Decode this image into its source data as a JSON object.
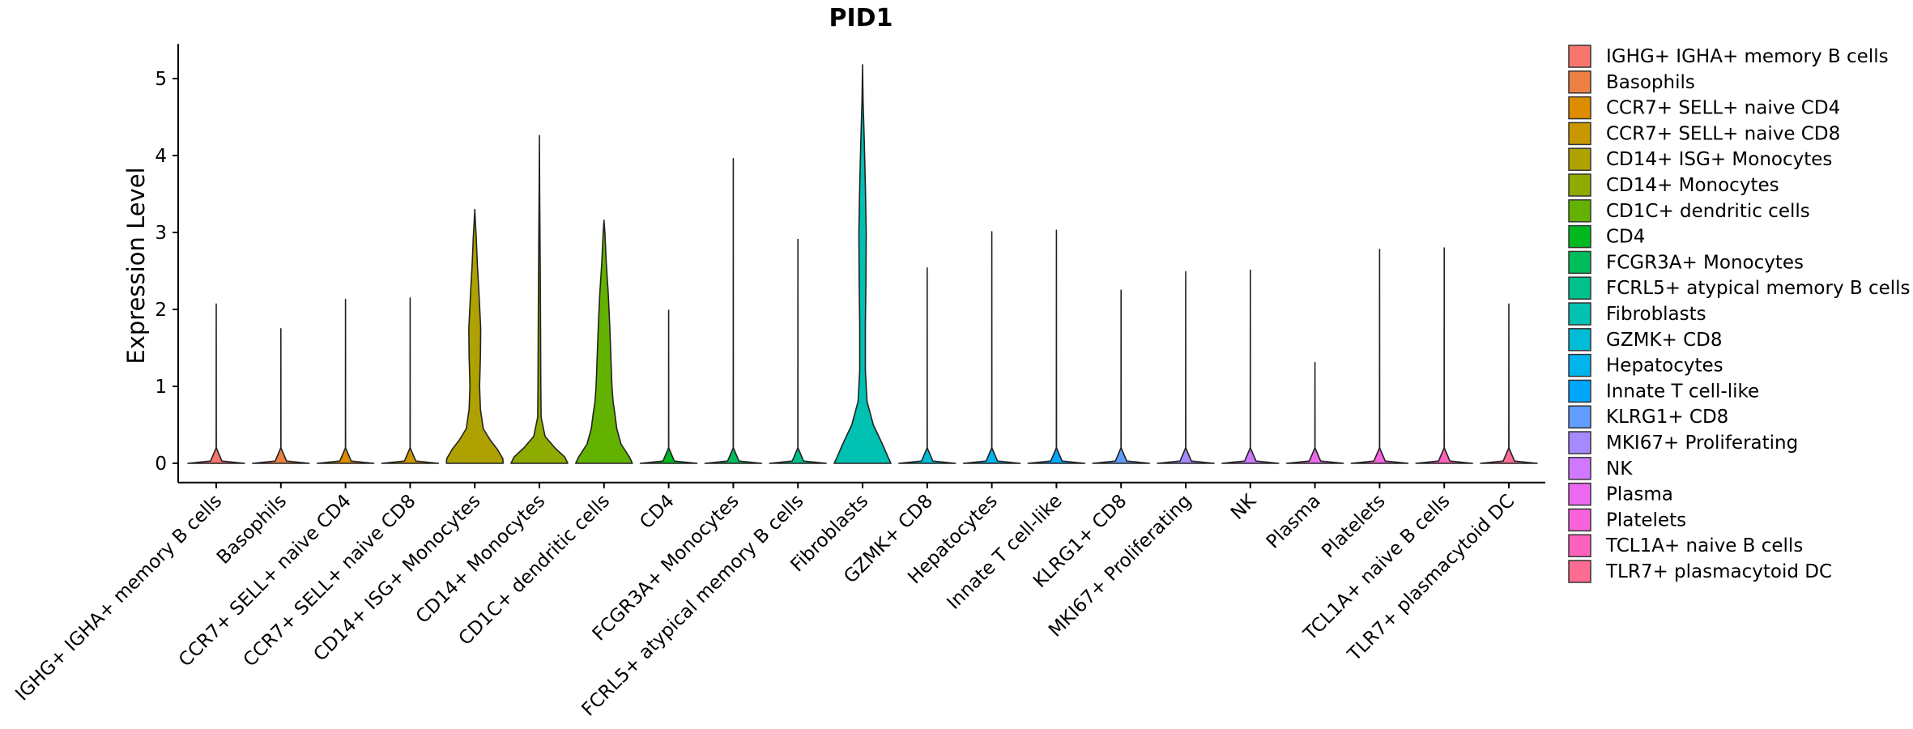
{
  "chart_data": {
    "type": "violin",
    "title": "PID1",
    "xlabel": "",
    "ylabel": "Expression Level",
    "ylim": [
      -0.25,
      5.45
    ],
    "yticks": [
      0,
      1,
      2,
      3,
      4,
      5
    ],
    "categories": [
      "IGHG+ IGHA+ memory B cells",
      "Basophils",
      "CCR7+ SELL+ naive CD4",
      "CCR7+ SELL+ naive CD8",
      "CD14+ ISG+ Monocytes",
      "CD14+ Monocytes",
      "CD1C+ dendritic cells",
      "CD4",
      "FCGR3A+ Monocytes",
      "FCRL5+ atypical memory B cells",
      "Fibroblasts",
      "GZMK+ CD8",
      "Hepatocytes",
      "Innate T cell-like",
      "KLRG1+ CD8",
      "MKI67+ Proliferating",
      "NK",
      "Plasma",
      "Platelets",
      "TCL1A+ naive B cells",
      "TLR7+ plasmacytoid DC"
    ],
    "legend_labels": [
      " IGHG+ IGHA+ memory B cells",
      "Basophils",
      "CCR7+ SELL+ naive CD4",
      "CCR7+ SELL+ naive CD8",
      "CD14+ ISG+ Monocytes",
      "CD14+ Monocytes",
      "CD1C+ dendritic cells",
      "CD4",
      "FCGR3A+ Monocytes",
      "FCRL5+ atypical memory B cells",
      "Fibroblasts",
      "GZMK+ CD8",
      "Hepatocytes",
      "Innate T cell-like",
      "KLRG1+ CD8",
      "MKI67+ Proliferating",
      "NK",
      "Plasma",
      "Platelets",
      "TCL1A+ naive B cells",
      "TLR7+ plasmacytoid DC"
    ],
    "colors": [
      "#F8766D",
      "#EE8043",
      "#DE8C00",
      "#C99800",
      "#AFA100",
      "#8EAB00",
      "#64B200",
      "#00B81F",
      "#00BD5C",
      "#00C08D",
      "#00C1B2",
      "#00BCD6",
      "#00B5EE",
      "#00A6FF",
      "#619CFF",
      "#A58AFF",
      "#D078FF",
      "#EC69EF",
      "#F962DD",
      "#FF62BC",
      "#FF6C91"
    ],
    "max_values": [
      2.07,
      1.75,
      2.13,
      2.15,
      3.3,
      4.26,
      3.16,
      1.99,
      3.96,
      2.91,
      5.18,
      2.54,
      3.01,
      3.03,
      2.25,
      2.49,
      2.51,
      1.31,
      2.78,
      2.8,
      2.07
    ],
    "density_profiles": [
      [
        [
          0,
          1
        ],
        [
          0.03,
          0.2
        ],
        [
          0.2,
          0.003
        ],
        [
          2.07,
          0
        ]
      ],
      [
        [
          0,
          1
        ],
        [
          0.03,
          0.2
        ],
        [
          0.2,
          0.003
        ],
        [
          1.75,
          0
        ]
      ],
      [
        [
          0,
          1
        ],
        [
          0.03,
          0.2
        ],
        [
          0.2,
          0.003
        ],
        [
          2.13,
          0
        ]
      ],
      [
        [
          0,
          1
        ],
        [
          0.03,
          0.2
        ],
        [
          0.2,
          0.003
        ],
        [
          2.15,
          0
        ]
      ],
      [
        [
          0,
          1
        ],
        [
          0.06,
          0.99
        ],
        [
          0.18,
          0.8
        ],
        [
          0.3,
          0.55
        ],
        [
          0.45,
          0.3
        ],
        [
          0.7,
          0.2
        ],
        [
          1.0,
          0.17
        ],
        [
          1.4,
          0.2
        ],
        [
          1.75,
          0.21
        ],
        [
          2.2,
          0.15
        ],
        [
          2.6,
          0.09
        ],
        [
          2.95,
          0.05
        ],
        [
          3.15,
          0.02
        ],
        [
          3.3,
          0
        ]
      ],
      [
        [
          0,
          1
        ],
        [
          0.08,
          0.9
        ],
        [
          0.2,
          0.55
        ],
        [
          0.35,
          0.2
        ],
        [
          0.6,
          0.06
        ],
        [
          1.0,
          0.05
        ],
        [
          1.8,
          0.04
        ],
        [
          2.5,
          0.03
        ],
        [
          3.0,
          0.02
        ],
        [
          3.5,
          0.01
        ],
        [
          4.26,
          0
        ]
      ],
      [
        [
          0,
          1
        ],
        [
          0.08,
          0.9
        ],
        [
          0.25,
          0.6
        ],
        [
          0.45,
          0.45
        ],
        [
          0.65,
          0.38
        ],
        [
          0.8,
          0.32
        ],
        [
          1.0,
          0.28
        ],
        [
          1.4,
          0.24
        ],
        [
          1.8,
          0.2
        ],
        [
          2.2,
          0.15
        ],
        [
          2.6,
          0.08
        ],
        [
          3.0,
          0.03
        ],
        [
          3.16,
          0
        ]
      ],
      [
        [
          0,
          1
        ],
        [
          0.03,
          0.2
        ],
        [
          0.2,
          0.003
        ],
        [
          1.99,
          0
        ]
      ],
      [
        [
          0,
          1
        ],
        [
          0.03,
          0.2
        ],
        [
          0.2,
          0.003
        ],
        [
          3.96,
          0
        ]
      ],
      [
        [
          0,
          1
        ],
        [
          0.03,
          0.2
        ],
        [
          0.2,
          0.003
        ],
        [
          2.91,
          0
        ]
      ],
      [
        [
          0,
          1
        ],
        [
          0.08,
          0.9
        ],
        [
          0.25,
          0.7
        ],
        [
          0.5,
          0.38
        ],
        [
          0.8,
          0.16
        ],
        [
          1.2,
          0.1
        ],
        [
          1.8,
          0.1
        ],
        [
          2.4,
          0.12
        ],
        [
          3.0,
          0.13
        ],
        [
          3.6,
          0.1
        ],
        [
          4.2,
          0.06
        ],
        [
          4.7,
          0.02
        ],
        [
          5.18,
          0
        ]
      ],
      [
        [
          0,
          1
        ],
        [
          0.03,
          0.2
        ],
        [
          0.2,
          0.003
        ],
        [
          2.54,
          0
        ]
      ],
      [
        [
          0,
          1
        ],
        [
          0.03,
          0.2
        ],
        [
          0.2,
          0.003
        ],
        [
          3.01,
          0
        ]
      ],
      [
        [
          0,
          1
        ],
        [
          0.03,
          0.2
        ],
        [
          0.2,
          0.003
        ],
        [
          3.03,
          0
        ]
      ],
      [
        [
          0,
          1
        ],
        [
          0.03,
          0.2
        ],
        [
          0.2,
          0.003
        ],
        [
          2.25,
          0
        ]
      ],
      [
        [
          0,
          1
        ],
        [
          0.03,
          0.2
        ],
        [
          0.2,
          0.003
        ],
        [
          2.49,
          0
        ]
      ],
      [
        [
          0,
          1
        ],
        [
          0.03,
          0.2
        ],
        [
          0.2,
          0.003
        ],
        [
          2.51,
          0
        ]
      ],
      [
        [
          0,
          1
        ],
        [
          0.03,
          0.2
        ],
        [
          0.2,
          0.003
        ],
        [
          1.31,
          0
        ]
      ],
      [
        [
          0,
          1
        ],
        [
          0.03,
          0.2
        ],
        [
          0.2,
          0.003
        ],
        [
          2.78,
          0
        ]
      ],
      [
        [
          0,
          1
        ],
        [
          0.03,
          0.2
        ],
        [
          0.2,
          0.003
        ],
        [
          2.8,
          0
        ]
      ],
      [
        [
          0,
          1
        ],
        [
          0.03,
          0.2
        ],
        [
          0.2,
          0.003
        ],
        [
          2.07,
          0
        ]
      ]
    ],
    "legend_position": "right"
  }
}
